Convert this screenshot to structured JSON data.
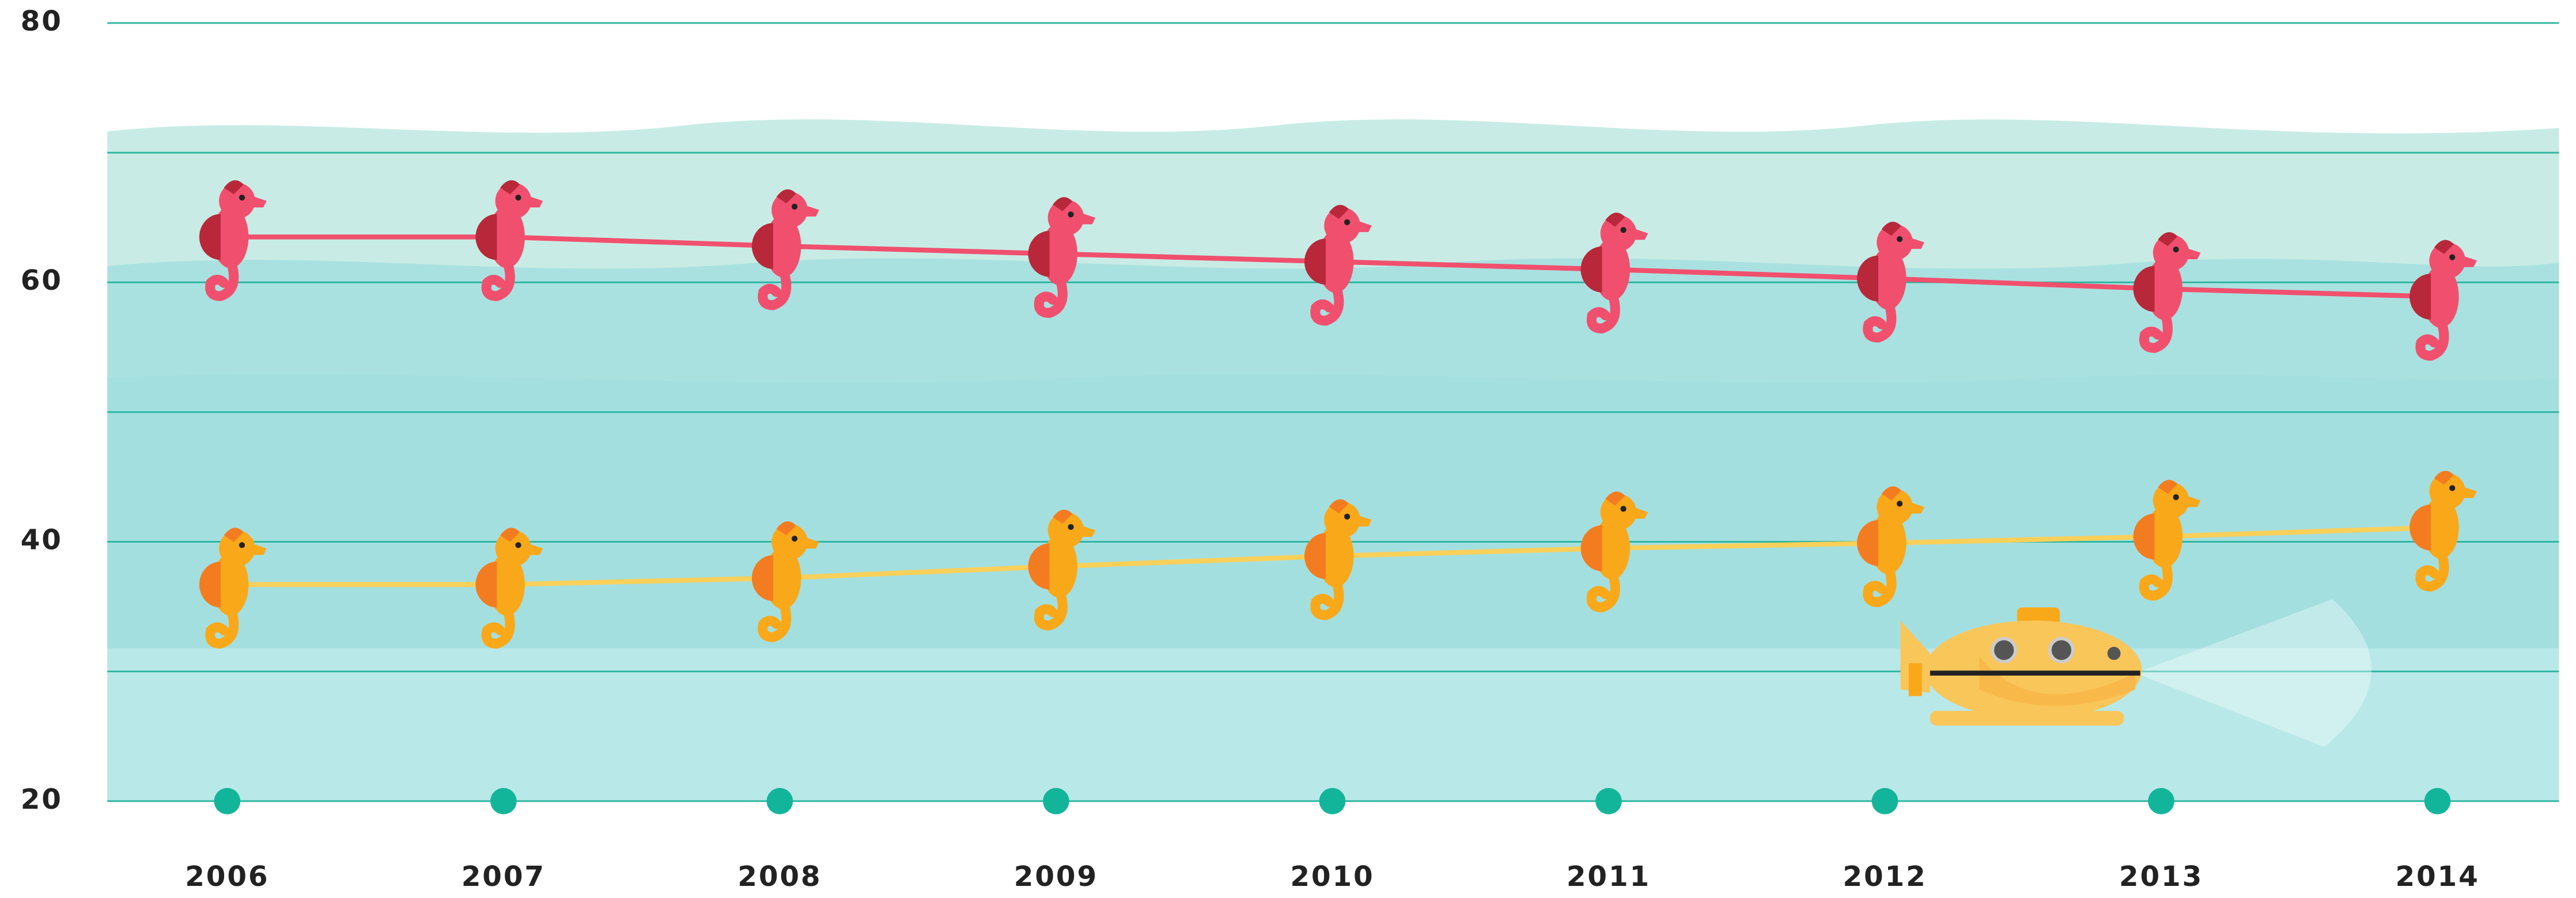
{
  "chart_data": {
    "type": "line",
    "x": [
      "2006",
      "2007",
      "2008",
      "2009",
      "2010",
      "2011",
      "2012",
      "2013",
      "2014"
    ],
    "series": [
      {
        "color": "#f0506e",
        "accent": "#b8283a",
        "values": [
          63.5,
          63.5,
          62.8,
          62.2,
          61.6,
          61.0,
          60.3,
          59.5,
          58.9
        ]
      },
      {
        "color": "#f9a81a",
        "accent": "#f47c20",
        "line_color": "#f9d05a",
        "values": [
          36.7,
          36.7,
          37.2,
          38.1,
          38.9,
          39.5,
          39.9,
          40.4,
          41.1
        ]
      }
    ],
    "ylim": [
      20,
      80
    ],
    "yticks": [
      20,
      40,
      60,
      80
    ],
    "minor_yticks": [
      30,
      50,
      70
    ],
    "grid": true,
    "grid_color": "#2bb5a0"
  }
}
